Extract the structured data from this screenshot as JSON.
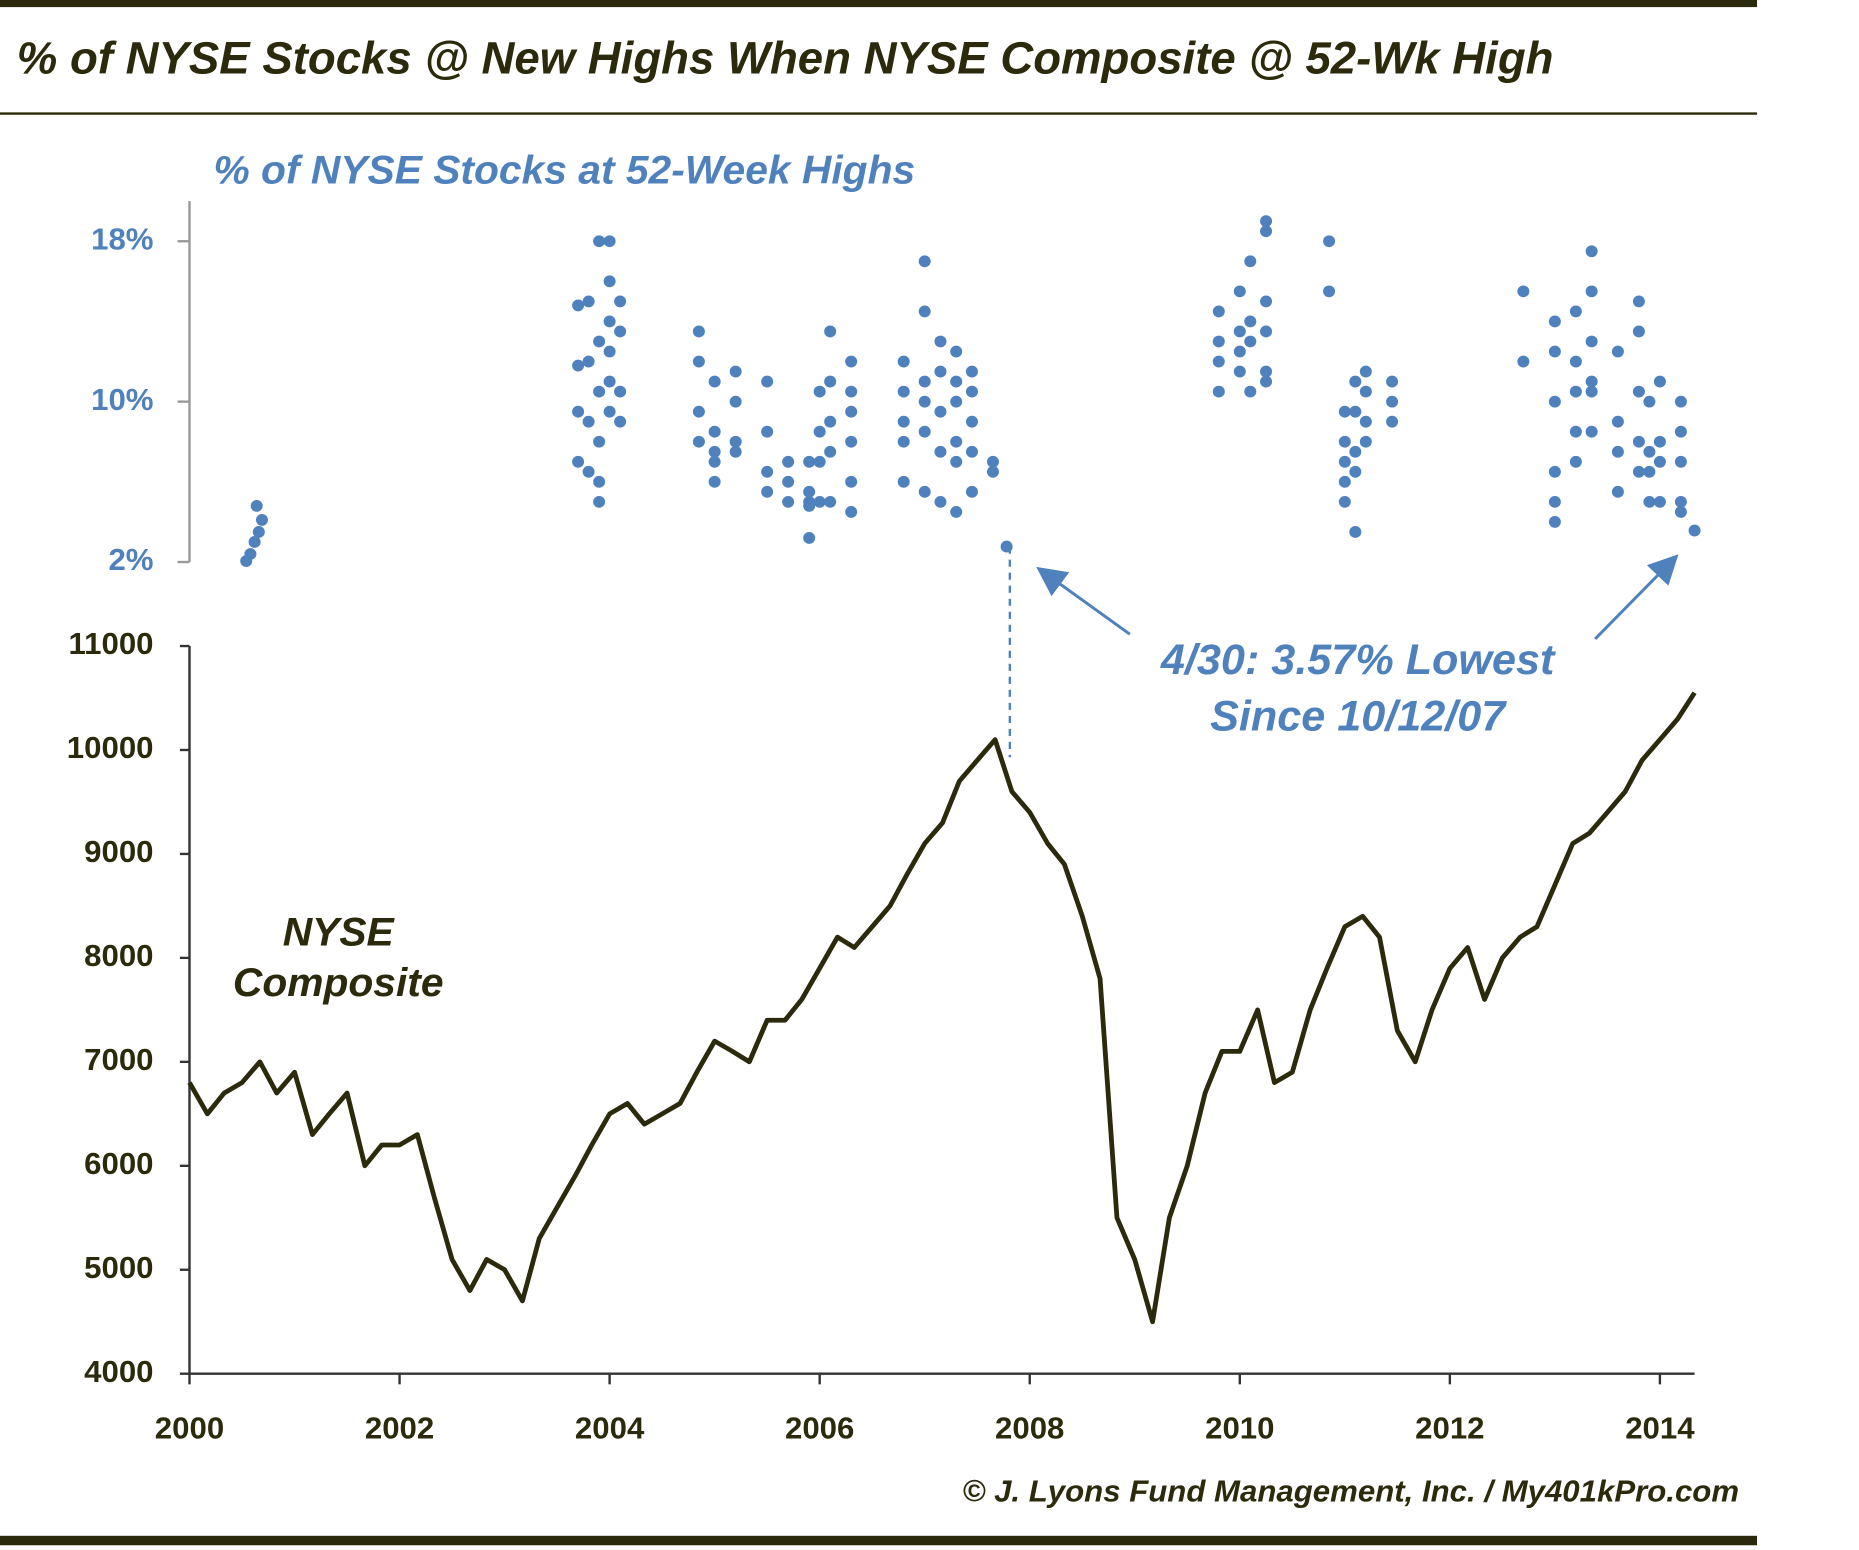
{
  "title": "% of NYSE Stocks @ New Highs When NYSE Composite @ 52-Wk High",
  "source": "© J. Lyons Fund Management, Inc. / My401kPro.com",
  "chart_data": [
    {
      "type": "scatter",
      "title": "% of NYSE Stocks at 52-Week Highs",
      "color": "#4f81bd",
      "xlim": [
        2000,
        2014.33
      ],
      "ylim": [
        2,
        20
      ],
      "yticks": [
        {
          "value": 2,
          "label": "2%"
        },
        {
          "value": 10,
          "label": "10%"
        },
        {
          "value": 18,
          "label": "18%"
        }
      ],
      "annotation": [
        "4/30: 3.57% Lowest",
        "Since 10/12/07"
      ],
      "x": [
        2000.54,
        2000.58,
        2000.62,
        2000.66,
        2000.69,
        2000.64,
        2003.7,
        2003.7,
        2003.7,
        2003.7,
        2003.8,
        2003.8,
        2003.8,
        2003.8,
        2003.9,
        2003.9,
        2003.9,
        2003.9,
        2003.9,
        2003.9,
        2004.0,
        2004.0,
        2004.0,
        2004.0,
        2004.0,
        2004.0,
        2004.1,
        2004.1,
        2004.1,
        2004.1,
        2004.85,
        2004.85,
        2004.85,
        2004.85,
        2005.0,
        2005.0,
        2005.0,
        2005.0,
        2005.0,
        2005.2,
        2005.2,
        2005.2,
        2005.2,
        2005.5,
        2005.5,
        2005.5,
        2005.5,
        2005.7,
        2005.7,
        2005.7,
        2005.9,
        2005.9,
        2005.9,
        2005.9,
        2005.9,
        2006.0,
        2006.0,
        2006.0,
        2006.0,
        2006.1,
        2006.1,
        2006.1,
        2006.1,
        2006.1,
        2006.3,
        2006.3,
        2006.3,
        2006.3,
        2006.3,
        2006.3,
        2006.8,
        2006.8,
        2006.8,
        2006.8,
        2006.8,
        2007.0,
        2007.0,
        2007.0,
        2007.0,
        2007.0,
        2007.0,
        2007.15,
        2007.15,
        2007.15,
        2007.15,
        2007.15,
        2007.3,
        2007.3,
        2007.3,
        2007.3,
        2007.3,
        2007.3,
        2007.45,
        2007.45,
        2007.45,
        2007.45,
        2007.45,
        2007.65,
        2007.65,
        2007.78,
        2009.8,
        2009.8,
        2009.8,
        2009.8,
        2010.0,
        2010.0,
        2010.0,
        2010.0,
        2010.1,
        2010.1,
        2010.1,
        2010.1,
        2010.25,
        2010.25,
        2010.25,
        2010.25,
        2010.25,
        2010.25,
        2010.85,
        2010.85,
        2011.0,
        2011.0,
        2011.0,
        2011.0,
        2011.0,
        2011.1,
        2011.1,
        2011.1,
        2011.1,
        2011.1,
        2011.2,
        2011.2,
        2011.2,
        2011.2,
        2011.45,
        2011.45,
        2011.45,
        2012.7,
        2012.7,
        2013.0,
        2013.0,
        2013.0,
        2013.0,
        2013.0,
        2013.0,
        2013.2,
        2013.2,
        2013.2,
        2013.2,
        2013.2,
        2013.35,
        2013.35,
        2013.35,
        2013.35,
        2013.35,
        2013.35,
        2013.6,
        2013.6,
        2013.6,
        2013.6,
        2013.8,
        2013.8,
        2013.8,
        2013.8,
        2013.8,
        2013.9,
        2013.9,
        2013.9,
        2013.9,
        2014.0,
        2014.0,
        2014.0,
        2014.0,
        2014.2,
        2014.2,
        2014.2,
        2014.2,
        2014.2,
        2014.33
      ],
      "values": [
        2.05,
        2.4,
        3.0,
        3.5,
        4.1,
        4.8,
        9.5,
        11.8,
        14.8,
        7.0,
        15.0,
        12.0,
        9.0,
        6.5,
        18.0,
        13.0,
        10.5,
        8.0,
        5.0,
        6.0,
        18.0,
        16.0,
        14.0,
        12.5,
        9.5,
        11.0,
        15.0,
        13.5,
        10.5,
        9.0,
        13.5,
        12.0,
        9.5,
        8.0,
        11.0,
        8.5,
        7.5,
        6.0,
        7.0,
        11.5,
        10.0,
        8.0,
        7.5,
        11.0,
        8.5,
        5.5,
        6.5,
        6.0,
        5.0,
        7.0,
        7.0,
        5.5,
        3.2,
        5.0,
        4.8,
        10.5,
        8.5,
        7.0,
        5.0,
        13.5,
        11.0,
        9.0,
        7.5,
        5.0,
        10.5,
        8.0,
        6.0,
        4.5,
        12.0,
        9.5,
        12.0,
        10.5,
        8.0,
        6.0,
        9.0,
        17.0,
        14.5,
        11.0,
        8.5,
        5.5,
        10.0,
        13.0,
        11.5,
        9.5,
        7.5,
        5.0,
        12.5,
        11.0,
        10.0,
        8.0,
        7.0,
        4.5,
        11.5,
        10.5,
        9.0,
        7.5,
        5.5,
        6.5,
        7.0,
        2.77,
        14.5,
        13.0,
        12.0,
        10.5,
        15.5,
        13.5,
        12.5,
        11.5,
        17.0,
        14.0,
        13.0,
        10.5,
        19.0,
        18.5,
        15.0,
        13.5,
        11.5,
        11.0,
        18.0,
        15.5,
        9.5,
        8.0,
        7.0,
        6.0,
        5.0,
        11.0,
        9.5,
        7.5,
        3.5,
        6.5,
        11.5,
        10.5,
        9.0,
        8.0,
        11.0,
        10.0,
        9.0,
        15.5,
        12.0,
        14.0,
        12.5,
        10.0,
        6.5,
        5.0,
        4.0,
        14.5,
        12.0,
        10.5,
        8.5,
        7.0,
        17.5,
        15.5,
        13.0,
        11.0,
        10.5,
        8.5,
        12.5,
        9.0,
        7.5,
        5.5,
        15.0,
        13.5,
        10.5,
        8.0,
        6.5,
        10.0,
        7.5,
        6.5,
        5.0,
        11.0,
        8.0,
        7.0,
        5.0,
        10.0,
        8.5,
        7.0,
        5.0,
        4.5,
        3.57
      ]
    },
    {
      "type": "line",
      "label": [
        "NYSE",
        "Composite"
      ],
      "color": "#2b2a0c",
      "xlim": [
        2000,
        2014.33
      ],
      "ylim": [
        4000,
        11000
      ],
      "xticks": [
        2000,
        2002,
        2004,
        2006,
        2008,
        2010,
        2012,
        2014
      ],
      "yticks": [
        4000,
        5000,
        6000,
        7000,
        8000,
        9000,
        10000,
        11000
      ],
      "x": [
        2000,
        2000.17,
        2000.33,
        2000.5,
        2000.67,
        2000.83,
        2001,
        2001.17,
        2001.33,
        2001.5,
        2001.67,
        2001.83,
        2002,
        2002.17,
        2002.33,
        2002.5,
        2002.67,
        2002.83,
        2003,
        2003.17,
        2003.33,
        2003.5,
        2003.67,
        2003.83,
        2004,
        2004.17,
        2004.33,
        2004.5,
        2004.67,
        2004.83,
        2005,
        2005.17,
        2005.33,
        2005.5,
        2005.67,
        2005.83,
        2006,
        2006.17,
        2006.33,
        2006.5,
        2006.67,
        2006.83,
        2007,
        2007.17,
        2007.33,
        2007.5,
        2007.67,
        2007.83,
        2008,
        2008.17,
        2008.33,
        2008.5,
        2008.67,
        2008.83,
        2009,
        2009.17,
        2009.33,
        2009.5,
        2009.67,
        2009.83,
        2010,
        2010.17,
        2010.33,
        2010.5,
        2010.67,
        2010.83,
        2011,
        2011.17,
        2011.33,
        2011.5,
        2011.67,
        2011.83,
        2012,
        2012.17,
        2012.33,
        2012.5,
        2012.67,
        2012.83,
        2013,
        2013.17,
        2013.33,
        2013.5,
        2013.67,
        2013.83,
        2014,
        2014.17,
        2014.33
      ],
      "values": [
        6800,
        6500,
        6700,
        6800,
        7000,
        6700,
        6900,
        6300,
        6500,
        6700,
        6000,
        6200,
        6200,
        6300,
        5700,
        5100,
        4800,
        5100,
        5000,
        4700,
        5300,
        5600,
        5900,
        6200,
        6500,
        6600,
        6400,
        6500,
        6600,
        6900,
        7200,
        7100,
        7000,
        7400,
        7400,
        7600,
        7900,
        8200,
        8100,
        8300,
        8500,
        8800,
        9100,
        9300,
        9700,
        9900,
        10100,
        9600,
        9400,
        9100,
        8900,
        8400,
        7800,
        5500,
        5100,
        4500,
        5500,
        6000,
        6700,
        7100,
        7100,
        7500,
        6800,
        6900,
        7500,
        7900,
        8300,
        8400,
        8200,
        7300,
        7000,
        7500,
        7900,
        8100,
        7600,
        8000,
        8200,
        8300,
        8700,
        9100,
        9200,
        9400,
        9600,
        9900,
        10100,
        10300,
        10550
      ]
    }
  ]
}
